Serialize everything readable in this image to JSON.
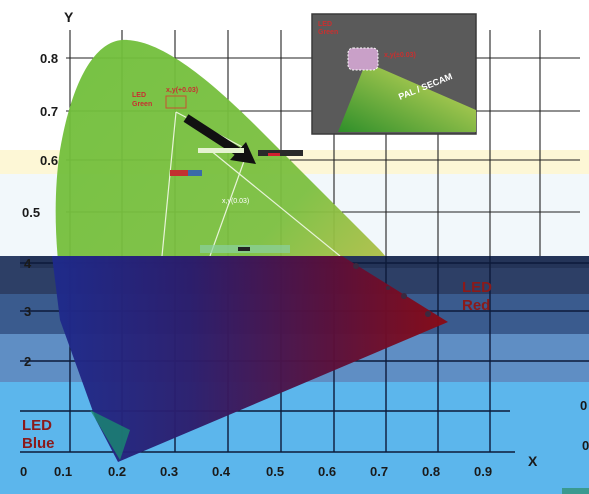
{
  "chart_data": {
    "type": "scatter",
    "title": "",
    "xlabel": "X",
    "ylabel": "Y",
    "x_ticks": [
      "0",
      "0.1",
      "0.2",
      "0.3",
      "0.4",
      "0.5",
      "0.6",
      "0.7",
      "0.8",
      "0.9"
    ],
    "y_ticks_upper": [
      "0.8",
      "0.7",
      "0.6",
      "0.5"
    ],
    "y_ticks_lower": [
      "4",
      "3",
      "2"
    ],
    "right_edge_ticks": [
      "0",
      "0"
    ],
    "xlim": [
      0,
      0.9
    ],
    "ylim": [
      0,
      0.85
    ],
    "grid": true,
    "series": [
      {
        "name": "LED Green",
        "values": [
          {
            "x": 0.2,
            "y": 0.72
          }
        ]
      },
      {
        "name": "LED Red",
        "values": [
          {
            "x": 0.82,
            "y": 0.3
          }
        ]
      },
      {
        "name": "LED Blue",
        "values": [
          {
            "x": 0.14,
            "y": 0.05
          }
        ]
      }
    ],
    "annotations": {
      "led_green": [
        "LED",
        "Green"
      ],
      "led_green_value": "x,y(+0.03)",
      "led_red": [
        "LED",
        "Red"
      ],
      "led_blue": [
        "LED",
        "Blue"
      ],
      "mid_label": "x,y(0.03)",
      "inset_led": [
        "LED",
        "Green"
      ],
      "inset_value": "x,y(±0.03)",
      "inset_standard": "PAL / SECAM"
    },
    "colors": {
      "horseshoe_green": "#5cb030",
      "red_region": "#8b1010",
      "blue_region": "#2a2a8c",
      "band_dark": "#2d3f66",
      "band_mid": "#3f6aa0",
      "band_light": "#5cb6ec",
      "inset_bg": "#5a5a5a"
    }
  }
}
